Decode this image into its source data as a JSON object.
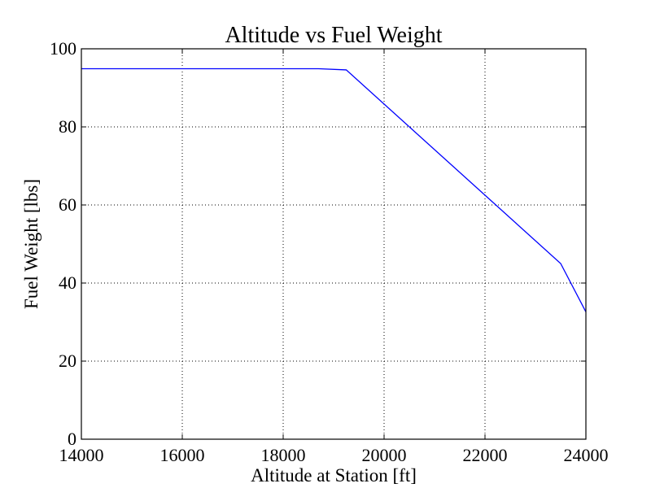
{
  "chart_data": {
    "type": "line",
    "title": "Altitude vs Fuel Weight",
    "xlabel": "Altitude at Station [ft]",
    "ylabel": "Fuel Weight [lbs]",
    "xlim": [
      14000,
      24000
    ],
    "ylim": [
      0,
      100
    ],
    "xticks": [
      14000,
      16000,
      18000,
      20000,
      22000,
      24000
    ],
    "yticks": [
      0,
      20,
      40,
      60,
      80,
      100
    ],
    "grid": true,
    "series": [
      {
        "color": "#0000ff",
        "x": [
          14000,
          18700,
          19250,
          23500,
          24000
        ],
        "y": [
          94.9,
          94.9,
          94.6,
          45.0,
          32.6
        ]
      }
    ]
  }
}
